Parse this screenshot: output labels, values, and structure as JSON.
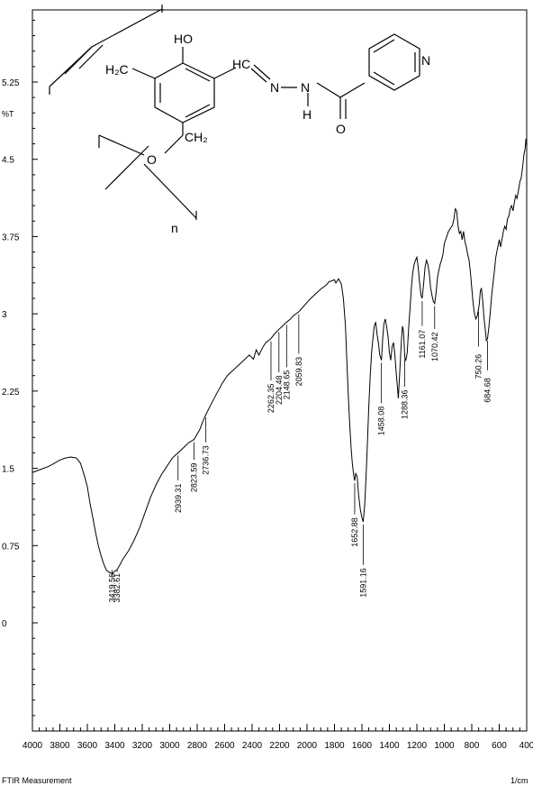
{
  "chart_data": {
    "type": "line",
    "title": "",
    "xlabel": "1/cm",
    "ylabel": "%T",
    "footer": "FTIR Measurement",
    "x_unit_label": "1/cm",
    "xlim": [
      4000,
      400
    ],
    "ylim": [
      -1.05,
      5.95
    ],
    "x_ticks": [
      4000,
      3800,
      3600,
      3400,
      3200,
      3000,
      2800,
      2600,
      2400,
      2200,
      2000,
      1800,
      1600,
      1400,
      1200,
      1000,
      800,
      600,
      400
    ],
    "y_ticks": [
      {
        "value": 0,
        "label": "0"
      },
      {
        "value": 0.75,
        "label": "0.75"
      },
      {
        "value": 1.5,
        "label": "1.5"
      },
      {
        "value": 2.25,
        "label": "2.25"
      },
      {
        "value": 3,
        "label": "3"
      },
      {
        "value": 3.75,
        "label": "3.75"
      },
      {
        "value": 4.5,
        "label": "4.5"
      },
      {
        "value": 5.25,
        "label": "5.25"
      }
    ],
    "y_unit_label": "%T",
    "y_unit_value": 4.95,
    "series": [
      {
        "values": [
          [
            4000,
            1.46
          ],
          [
            3960,
            1.48
          ],
          [
            3920,
            1.5
          ],
          [
            3880,
            1.52
          ],
          [
            3840,
            1.55
          ],
          [
            3800,
            1.58
          ],
          [
            3760,
            1.6
          ],
          [
            3720,
            1.61
          ],
          [
            3680,
            1.6
          ],
          [
            3650,
            1.55
          ],
          [
            3620,
            1.42
          ],
          [
            3600,
            1.32
          ],
          [
            3580,
            1.16
          ],
          [
            3560,
            1.02
          ],
          [
            3540,
            0.88
          ],
          [
            3520,
            0.75
          ],
          [
            3500,
            0.65
          ],
          [
            3480,
            0.57
          ],
          [
            3460,
            0.51
          ],
          [
            3440,
            0.49
          ],
          [
            3420,
            0.48
          ],
          [
            3400,
            0.5
          ],
          [
            3382,
            0.52
          ],
          [
            3360,
            0.57
          ],
          [
            3340,
            0.62
          ],
          [
            3300,
            0.7
          ],
          [
            3260,
            0.8
          ],
          [
            3220,
            0.92
          ],
          [
            3180,
            1.07
          ],
          [
            3140,
            1.22
          ],
          [
            3100,
            1.34
          ],
          [
            3060,
            1.44
          ],
          [
            3020,
            1.52
          ],
          [
            2980,
            1.6
          ],
          [
            2940,
            1.65
          ],
          [
            2900,
            1.7
          ],
          [
            2860,
            1.75
          ],
          [
            2823,
            1.78
          ],
          [
            2780,
            1.88
          ],
          [
            2760,
            1.95
          ],
          [
            2737,
            2.02
          ],
          [
            2700,
            2.12
          ],
          [
            2660,
            2.22
          ],
          [
            2620,
            2.32
          ],
          [
            2580,
            2.4
          ],
          [
            2540,
            2.45
          ],
          [
            2500,
            2.5
          ],
          [
            2460,
            2.55
          ],
          [
            2420,
            2.6
          ],
          [
            2390,
            2.56
          ],
          [
            2370,
            2.65
          ],
          [
            2350,
            2.6
          ],
          [
            2320,
            2.68
          ],
          [
            2300,
            2.72
          ],
          [
            2262,
            2.76
          ],
          [
            2240,
            2.8
          ],
          [
            2204,
            2.85
          ],
          [
            2180,
            2.88
          ],
          [
            2148,
            2.92
          ],
          [
            2120,
            2.95
          ],
          [
            2100,
            2.98
          ],
          [
            2060,
            3.02
          ],
          [
            2020,
            3.08
          ],
          [
            1980,
            3.14
          ],
          [
            1940,
            3.19
          ],
          [
            1900,
            3.24
          ],
          [
            1860,
            3.28
          ],
          [
            1840,
            3.31
          ],
          [
            1820,
            3.32
          ],
          [
            1800,
            3.33
          ],
          [
            1790,
            3.3
          ],
          [
            1770,
            3.34
          ],
          [
            1750,
            3.29
          ],
          [
            1735,
            3.15
          ],
          [
            1720,
            2.88
          ],
          [
            1710,
            2.55
          ],
          [
            1700,
            2.22
          ],
          [
            1690,
            1.95
          ],
          [
            1680,
            1.72
          ],
          [
            1670,
            1.55
          ],
          [
            1660,
            1.43
          ],
          [
            1653,
            1.38
          ],
          [
            1645,
            1.45
          ],
          [
            1635,
            1.42
          ],
          [
            1625,
            1.25
          ],
          [
            1612,
            1.1
          ],
          [
            1600,
            1.02
          ],
          [
            1591,
            0.98
          ],
          [
            1580,
            1.15
          ],
          [
            1570,
            1.42
          ],
          [
            1560,
            1.75
          ],
          [
            1550,
            2.1
          ],
          [
            1540,
            2.4
          ],
          [
            1530,
            2.62
          ],
          [
            1520,
            2.76
          ],
          [
            1510,
            2.88
          ],
          [
            1500,
            2.92
          ],
          [
            1490,
            2.8
          ],
          [
            1480,
            2.72
          ],
          [
            1470,
            2.6
          ],
          [
            1458,
            2.55
          ],
          [
            1448,
            2.78
          ],
          [
            1440,
            2.9
          ],
          [
            1430,
            2.95
          ],
          [
            1420,
            2.88
          ],
          [
            1410,
            2.78
          ],
          [
            1400,
            2.62
          ],
          [
            1390,
            2.55
          ],
          [
            1380,
            2.68
          ],
          [
            1370,
            2.72
          ],
          [
            1360,
            2.6
          ],
          [
            1350,
            2.42
          ],
          [
            1340,
            2.26
          ],
          [
            1335,
            2.18
          ],
          [
            1328,
            2.35
          ],
          [
            1320,
            2.55
          ],
          [
            1312,
            2.75
          ],
          [
            1305,
            2.88
          ],
          [
            1300,
            2.85
          ],
          [
            1295,
            2.78
          ],
          [
            1288,
            2.58
          ],
          [
            1280,
            2.55
          ],
          [
            1270,
            2.62
          ],
          [
            1260,
            2.85
          ],
          [
            1250,
            3.05
          ],
          [
            1240,
            3.25
          ],
          [
            1230,
            3.4
          ],
          [
            1220,
            3.48
          ],
          [
            1210,
            3.52
          ],
          [
            1200,
            3.55
          ],
          [
            1190,
            3.45
          ],
          [
            1180,
            3.3
          ],
          [
            1170,
            3.18
          ],
          [
            1161,
            3.15
          ],
          [
            1150,
            3.3
          ],
          [
            1140,
            3.45
          ],
          [
            1130,
            3.52
          ],
          [
            1120,
            3.48
          ],
          [
            1110,
            3.4
          ],
          [
            1100,
            3.25
          ],
          [
            1090,
            3.18
          ],
          [
            1080,
            3.12
          ],
          [
            1070,
            3.1
          ],
          [
            1060,
            3.2
          ],
          [
            1050,
            3.35
          ],
          [
            1040,
            3.42
          ],
          [
            1030,
            3.48
          ],
          [
            1020,
            3.52
          ],
          [
            1010,
            3.58
          ],
          [
            1000,
            3.68
          ],
          [
            990,
            3.72
          ],
          [
            980,
            3.76
          ],
          [
            970,
            3.8
          ],
          [
            960,
            3.82
          ],
          [
            950,
            3.84
          ],
          [
            940,
            3.86
          ],
          [
            930,
            3.92
          ],
          [
            920,
            4.02
          ],
          [
            910,
            4.0
          ],
          [
            900,
            3.85
          ],
          [
            890,
            3.78
          ],
          [
            880,
            3.8
          ],
          [
            870,
            3.72
          ],
          [
            860,
            3.8
          ],
          [
            850,
            3.7
          ],
          [
            840,
            3.65
          ],
          [
            830,
            3.58
          ],
          [
            820,
            3.52
          ],
          [
            810,
            3.4
          ],
          [
            800,
            3.25
          ],
          [
            790,
            3.1
          ],
          [
            780,
            3.0
          ],
          [
            770,
            2.95
          ],
          [
            760,
            2.98
          ],
          [
            750,
            3.05
          ],
          [
            745,
            3.1
          ],
          [
            738,
            3.22
          ],
          [
            730,
            3.25
          ],
          [
            720,
            3.12
          ],
          [
            710,
            2.95
          ],
          [
            700,
            2.82
          ],
          [
            694,
            2.74
          ],
          [
            685,
            2.76
          ],
          [
            675,
            2.88
          ],
          [
            665,
            3.02
          ],
          [
            655,
            3.18
          ],
          [
            645,
            3.3
          ],
          [
            635,
            3.42
          ],
          [
            625,
            3.55
          ],
          [
            615,
            3.62
          ],
          [
            605,
            3.68
          ],
          [
            600,
            3.72
          ],
          [
            590,
            3.65
          ],
          [
            580,
            3.72
          ],
          [
            570,
            3.8
          ],
          [
            560,
            3.85
          ],
          [
            550,
            3.82
          ],
          [
            540,
            3.92
          ],
          [
            530,
            3.95
          ],
          [
            520,
            4.02
          ],
          [
            510,
            4.05
          ],
          [
            500,
            4.0
          ],
          [
            490,
            4.08
          ],
          [
            480,
            4.15
          ],
          [
            470,
            4.12
          ],
          [
            460,
            4.2
          ],
          [
            450,
            4.28
          ],
          [
            440,
            4.32
          ],
          [
            430,
            4.42
          ],
          [
            420,
            4.55
          ],
          [
            412,
            4.6
          ],
          [
            405,
            4.7
          ],
          [
            400,
            4.62
          ]
        ]
      }
    ],
    "peaks": [
      {
        "x": 3419.56,
        "label": "3419.56",
        "label_y": 0.18
      },
      {
        "x": 3382.61,
        "label": "3382.61",
        "label_y": 0.18
      },
      {
        "x": 2939.31,
        "label": "2939.31",
        "label_y": 1.05
      },
      {
        "x": 2823.59,
        "label": "2823.59",
        "label_y": 1.25
      },
      {
        "x": 2736.73,
        "label": "2736.73",
        "label_y": 1.42
      },
      {
        "x": 2262.35,
        "label": "2262.35",
        "label_y": 2.02
      },
      {
        "x": 2204.48,
        "label": "2204.48",
        "label_y": 2.1
      },
      {
        "x": 2148.65,
        "label": "2148.65",
        "label_y": 2.15
      },
      {
        "x": 2059.83,
        "label": "2059.83",
        "label_y": 2.28
      },
      {
        "x": 1652.88,
        "label": "1652.88",
        "label_y": 0.72
      },
      {
        "x": 1591.16,
        "label": "1591.16",
        "label_y": 0.23
      },
      {
        "x": 1458.08,
        "label": "1458.08",
        "label_y": 1.8
      },
      {
        "x": 1288.36,
        "label": "1288.36",
        "label_y": 1.96
      },
      {
        "x": 1161.07,
        "label": "1161.07",
        "label_y": 2.55
      },
      {
        "x": 1070.42,
        "label": "1070.42",
        "label_y": 2.52
      },
      {
        "x": 750.26,
        "label": "750.26",
        "label_y": 2.35
      },
      {
        "x": 684.68,
        "label": "684.68",
        "label_y": 2.12
      }
    ],
    "grid": false,
    "legend": "none"
  },
  "structure": {
    "labels": {
      "ho": "HO",
      "h2c": "H₂C",
      "hc": "HC",
      "n1": "N",
      "n2": "N",
      "h": "H",
      "o_carbonyl": "O",
      "n_pyridine": "N",
      "o_ether": "O",
      "ch2": "CH₂",
      "n_repeat": "n"
    }
  }
}
